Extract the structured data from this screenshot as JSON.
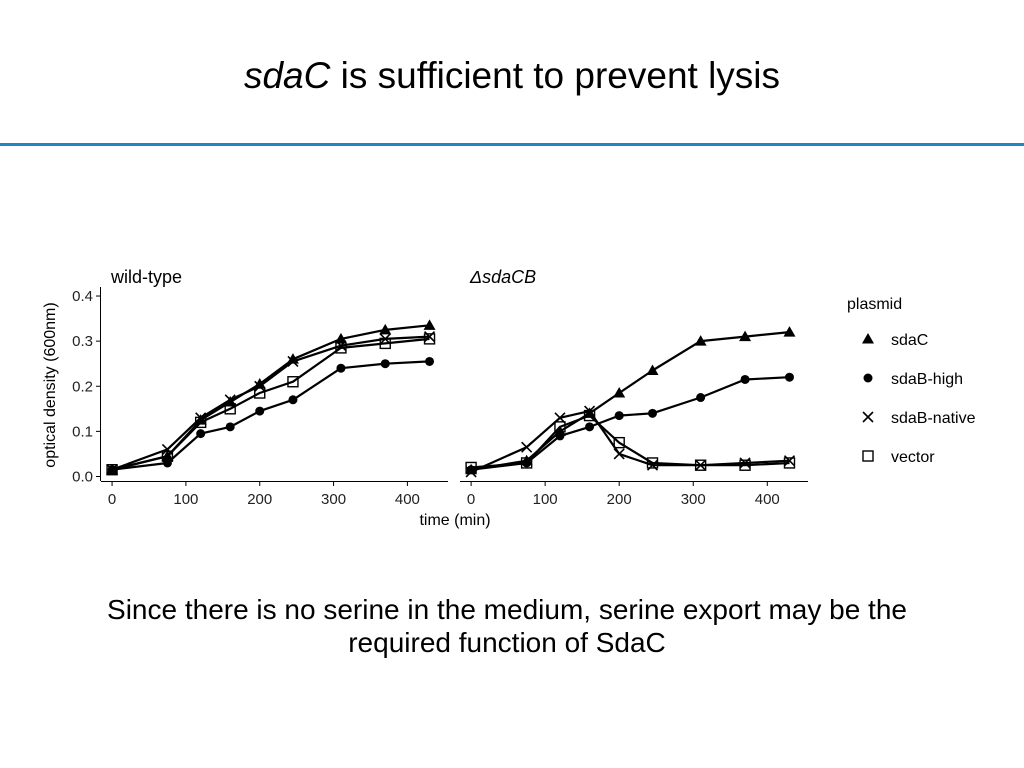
{
  "slide": {
    "title_italic": "sdaC",
    "title_rest": " is sufficient to prevent lysis",
    "caption_line1": "Since there is no serine in the medium, serine export may be the",
    "caption_line2": "required function of SdaC",
    "accent_color": "#1f86c8"
  },
  "chart_data": {
    "type": "line",
    "xlabel": "time (min)",
    "ylabel": "optical density (600nm)",
    "xlim": [
      -15,
      455
    ],
    "ylim": [
      -0.01,
      0.42
    ],
    "xticks": [
      0,
      100,
      200,
      300,
      400
    ],
    "yticks": [
      0.0,
      0.1,
      0.2,
      0.3,
      0.4
    ],
    "ytick_labels": [
      "0.0",
      "0.1",
      "0.2",
      "0.3",
      "0.4"
    ],
    "legend": {
      "title": "plasmid",
      "placement": "right",
      "entries": [
        {
          "label": "sdaC",
          "marker": "triangle"
        },
        {
          "label": "sdaB-high",
          "marker": "circle"
        },
        {
          "label": "sdaB-native",
          "marker": "cross"
        },
        {
          "label": "vector",
          "marker": "square"
        }
      ]
    },
    "panels": [
      {
        "title": "wild-type",
        "title_italic": false,
        "series": [
          {
            "name": "sdaC",
            "marker": "triangle",
            "x": [
              0,
              75,
              120,
              160,
              200,
              245,
              310,
              370,
              430
            ],
            "y": [
              0.015,
              0.045,
              0.125,
              0.165,
              0.205,
              0.26,
              0.305,
              0.325,
              0.335
            ]
          },
          {
            "name": "sdaB-high",
            "marker": "circle",
            "x": [
              0,
              75,
              120,
              160,
              200,
              245,
              310,
              370,
              430
            ],
            "y": [
              0.015,
              0.03,
              0.095,
              0.11,
              0.145,
              0.17,
              0.24,
              0.25,
              0.255
            ]
          },
          {
            "name": "sdaB-native",
            "marker": "cross",
            "x": [
              0,
              75,
              120,
              160,
              200,
              245,
              310,
              370,
              430
            ],
            "y": [
              0.015,
              0.06,
              0.13,
              0.17,
              0.2,
              0.255,
              0.29,
              0.305,
              0.31
            ]
          },
          {
            "name": "vector",
            "marker": "square",
            "x": [
              0,
              75,
              120,
              160,
              200,
              245,
              310,
              370,
              430
            ],
            "y": [
              0.015,
              0.045,
              0.12,
              0.15,
              0.185,
              0.21,
              0.285,
              0.295,
              0.305
            ]
          }
        ]
      },
      {
        "title": "ΔsdaCB",
        "title_italic": true,
        "series": [
          {
            "name": "sdaC",
            "marker": "triangle",
            "x": [
              0,
              75,
              120,
              160,
              200,
              245,
              310,
              370,
              430
            ],
            "y": [
              0.015,
              0.035,
              0.1,
              0.14,
              0.185,
              0.235,
              0.3,
              0.31,
              0.32
            ]
          },
          {
            "name": "sdaB-high",
            "marker": "circle",
            "x": [
              0,
              75,
              120,
              160,
              200,
              245,
              310,
              370,
              430
            ],
            "y": [
              0.015,
              0.03,
              0.09,
              0.11,
              0.135,
              0.14,
              0.175,
              0.215,
              0.22
            ]
          },
          {
            "name": "sdaB-native",
            "marker": "cross",
            "x": [
              0,
              75,
              120,
              160,
              200,
              245,
              310,
              370,
              430
            ],
            "y": [
              0.01,
              0.065,
              0.13,
              0.145,
              0.05,
              0.025,
              0.025,
              0.03,
              0.035
            ]
          },
          {
            "name": "vector",
            "marker": "square",
            "x": [
              0,
              75,
              120,
              160,
              200,
              245,
              310,
              370,
              430
            ],
            "y": [
              0.02,
              0.03,
              0.11,
              0.135,
              0.075,
              0.03,
              0.025,
              0.025,
              0.03
            ]
          }
        ]
      }
    ]
  }
}
